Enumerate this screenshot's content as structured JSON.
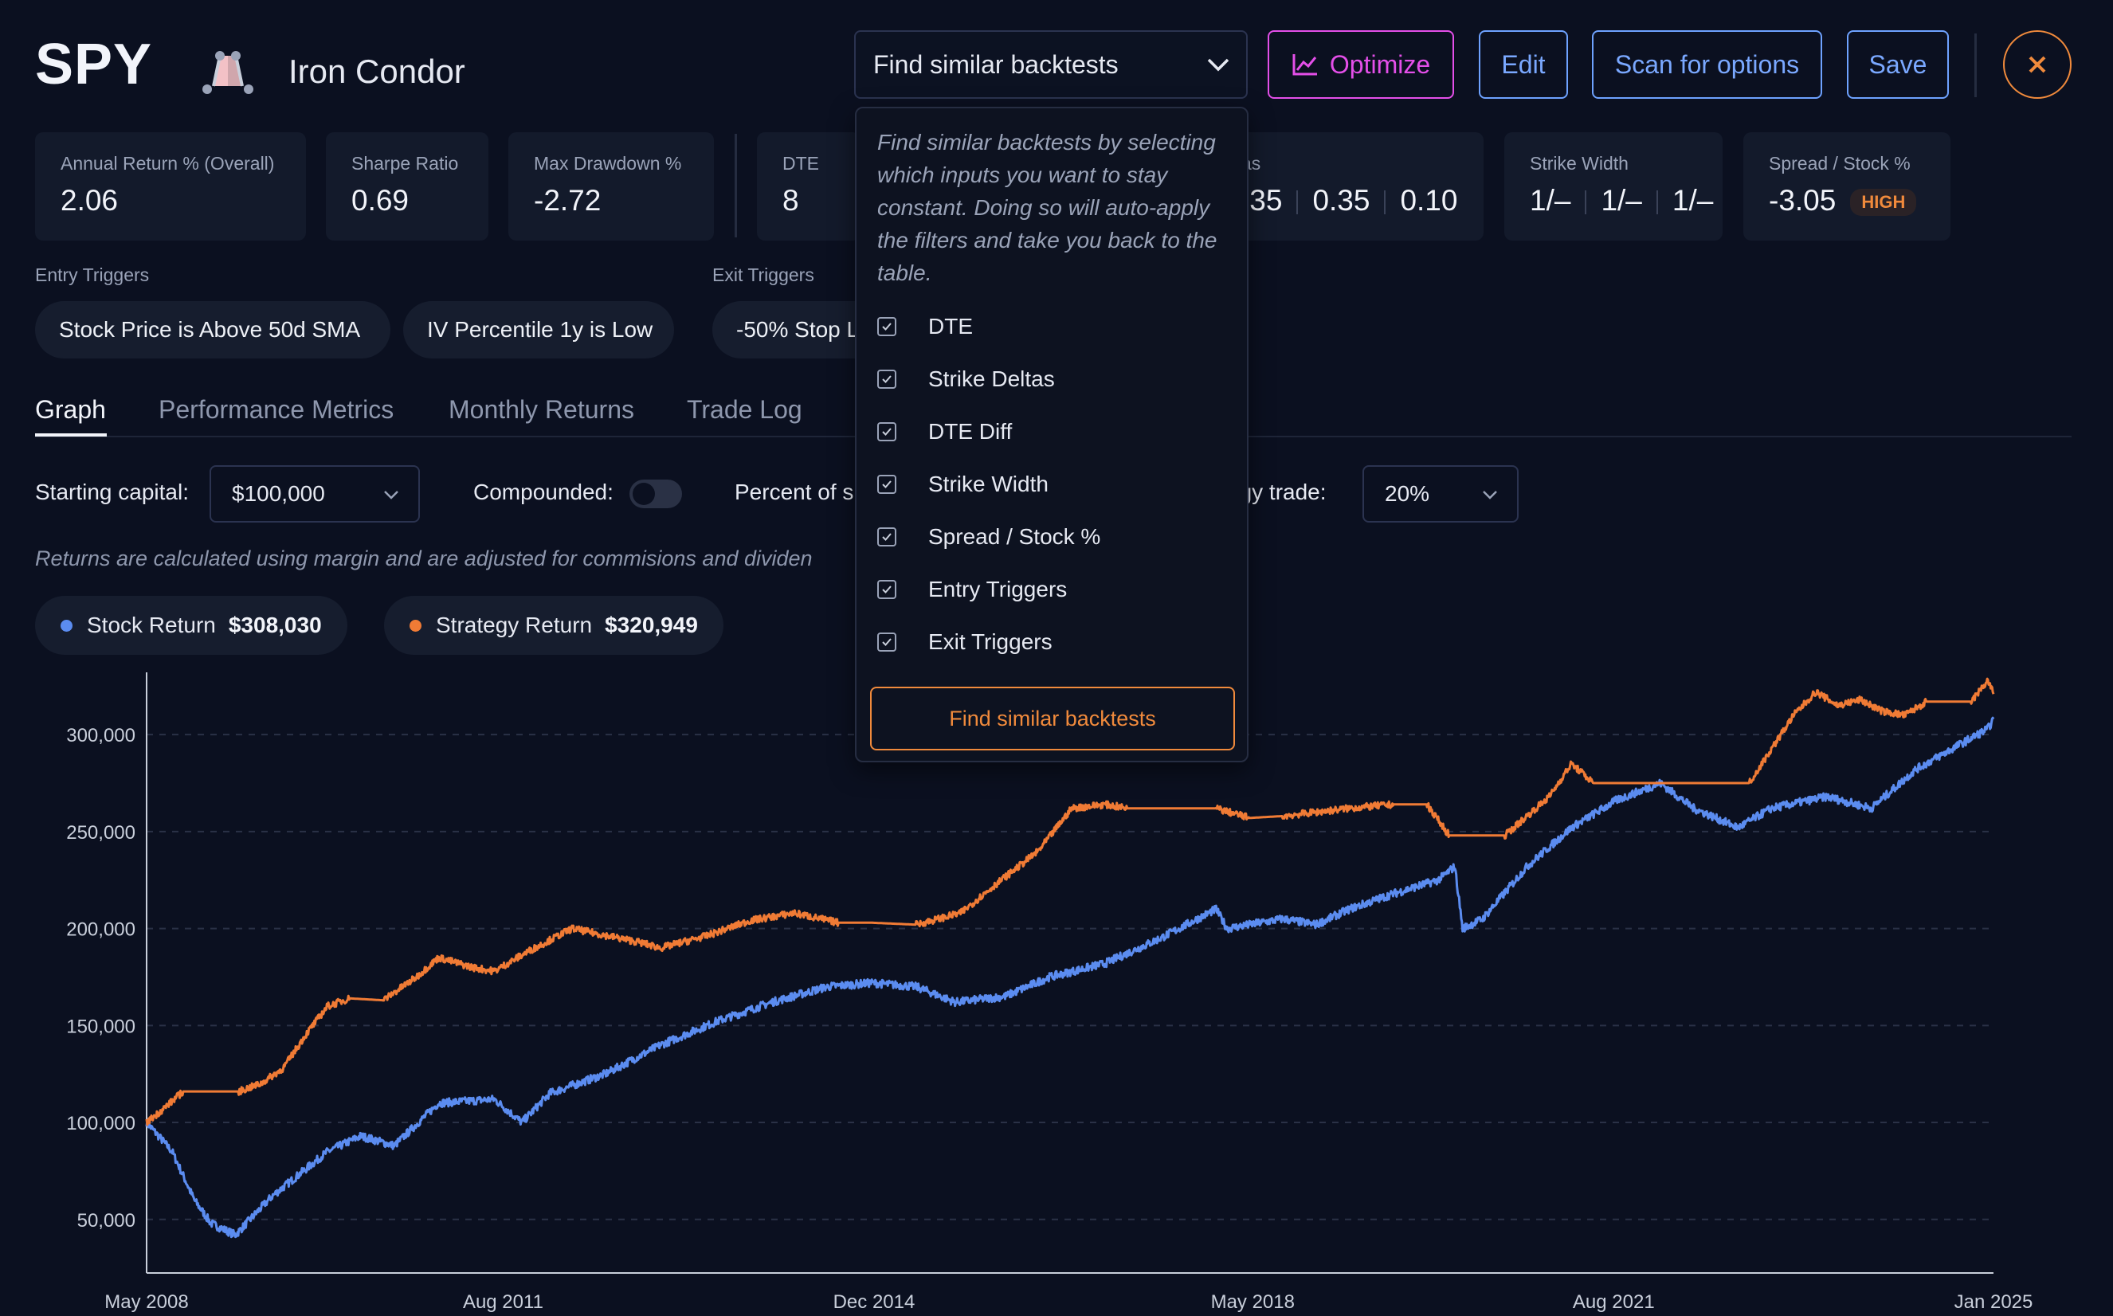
{
  "header": {
    "ticker": "SPY",
    "strategy_name": "Iron Condor",
    "strategy_icon": "iron-condor-icon",
    "similar_dropdown_label": "Find similar backtests",
    "optimize_label": "Optimize",
    "edit_label": "Edit",
    "scan_label": "Scan for options",
    "save_label": "Save",
    "close_icon": "close-icon"
  },
  "metrics": {
    "annual_return": {
      "label": "Annual Return % (Overall)",
      "value": "2.06"
    },
    "sharpe": {
      "label": "Sharpe Ratio",
      "value": "0.69"
    },
    "max_drawdown": {
      "label": "Max Drawdown %",
      "value": "-2.72"
    },
    "dte": {
      "label": "DTE",
      "value": "8"
    },
    "strike_deltas": {
      "label_partial": "as",
      "values": [
        ".35",
        "0.35",
        "0.10"
      ]
    },
    "strike_width": {
      "label": "Strike Width",
      "values": [
        "1/–",
        "1/–",
        "1/–"
      ]
    },
    "spread_stock": {
      "label": "Spread / Stock %",
      "value": "-3.05",
      "badge": "HIGH"
    }
  },
  "triggers": {
    "entry_label": "Entry Triggers",
    "entry": [
      "Stock Price is Above 50d SMA",
      "IV Percentile 1y is Low"
    ],
    "exit_label": "Exit Triggers",
    "exit": [
      "-50% Stop L"
    ]
  },
  "tabs": [
    "Graph",
    "Performance Metrics",
    "Monthly Returns",
    "Trade Log"
  ],
  "controls": {
    "starting_capital_label": "Starting capital:",
    "starting_capital_value": "$100,000",
    "compounded_label": "Compounded:",
    "compounded_on": false,
    "percent_label_left": "Percent of s",
    "percent_label_right": "egy trade:",
    "percent_value": "20%",
    "disclaimer": "Returns are calculated using margin and are adjusted for commisions and dividen"
  },
  "legend": {
    "stock": {
      "label": "Stock Return",
      "value": "$308,030",
      "color": "#5b8cf0"
    },
    "strategy": {
      "label": "Strategy Return",
      "value": "$320,949",
      "color": "#f07b35"
    }
  },
  "popover": {
    "description": "Find similar backtests by selecting which inputs you want to stay constant. Doing so will auto-apply the filters and take you back to the table.",
    "options": [
      "DTE",
      "Strike Deltas",
      "DTE Diff",
      "Strike Width",
      "Spread / Stock %",
      "Entry Triggers",
      "Exit Triggers"
    ],
    "checked": [
      true,
      true,
      true,
      true,
      true,
      true,
      true
    ],
    "button_label": "Find similar backtests"
  },
  "chart_data": {
    "type": "line",
    "x_tick_labels": [
      "May 2008",
      "Aug 2011",
      "Dec 2014",
      "May 2018",
      "Aug 2021",
      "Jan 2025"
    ],
    "x_range": [
      "2008-05",
      "2025-01"
    ],
    "y_tick_labels": [
      "50,000",
      "100,000",
      "150,000",
      "200,000",
      "250,000",
      "300,000"
    ],
    "ylim": [
      38000,
      328000
    ],
    "grid": "horizontal dashed",
    "series": [
      {
        "name": "Stock Return",
        "color": "#5b8cf0",
        "x": [
          2008.37,
          2008.6,
          2008.8,
          2008.95,
          2009.17,
          2009.5,
          2010.0,
          2010.3,
          2010.6,
          2011.0,
          2011.5,
          2011.75,
          2012.0,
          2012.5,
          2013.0,
          2013.5,
          2014.0,
          2014.5,
          2014.9,
          2015.3,
          2015.65,
          2016.1,
          2016.5,
          2017.0,
          2017.5,
          2018.0,
          2018.1,
          2018.6,
          2018.9,
          2019.2,
          2019.6,
          2020.0,
          2020.15,
          2020.22,
          2020.4,
          2020.8,
          2021.2,
          2021.6,
          2022.0,
          2022.3,
          2022.7,
          2023.0,
          2023.5,
          2023.9,
          2024.3,
          2024.7,
          2024.95,
          2025.0
        ],
        "y": [
          100000,
          85000,
          60000,
          48000,
          42000,
          62000,
          85000,
          93000,
          88000,
          110000,
          112000,
          100000,
          115000,
          125000,
          140000,
          152000,
          162000,
          170000,
          172000,
          170000,
          162000,
          165000,
          175000,
          182000,
          195000,
          210000,
          200000,
          205000,
          202000,
          210000,
          218000,
          225000,
          232000,
          200000,
          205000,
          232000,
          252000,
          266000,
          275000,
          262000,
          252000,
          262000,
          268000,
          262000,
          282000,
          295000,
          303000,
          308030
        ]
      },
      {
        "name": "Strategy Return",
        "color": "#f07b35",
        "x": [
          2008.37,
          2008.5,
          2008.7,
          2009.2,
          2009.4,
          2009.6,
          2009.8,
          2010.0,
          2010.2,
          2010.5,
          2010.8,
          2011.0,
          2011.3,
          2011.5,
          2011.8,
          2012.2,
          2012.8,
          2013.0,
          2013.4,
          2013.8,
          2014.2,
          2014.6,
          2014.9,
          2015.3,
          2015.7,
          2016.0,
          2016.4,
          2016.7,
          2017.0,
          2017.2,
          2017.5,
          2018.0,
          2018.3,
          2018.6,
          2018.9,
          2019.2,
          2019.6,
          2019.9,
          2020.1,
          2020.2,
          2020.6,
          2020.8,
          2021.0,
          2021.2,
          2021.4,
          2021.6,
          2022.0,
          2022.4,
          2022.8,
          2023.2,
          2023.4,
          2023.6,
          2023.8,
          2024.0,
          2024.2,
          2024.4,
          2024.8,
          2024.95,
          2025.0
        ],
        "y": [
          100000,
          106000,
          116000,
          116000,
          120000,
          128000,
          145000,
          160000,
          164000,
          163000,
          175000,
          185000,
          180000,
          178000,
          188000,
          200000,
          193000,
          190000,
          196000,
          204000,
          208000,
          203000,
          203000,
          202000,
          208000,
          222000,
          240000,
          262000,
          264000,
          262000,
          262000,
          262000,
          257000,
          258000,
          260000,
          262000,
          264000,
          264000,
          248000,
          248000,
          248000,
          258000,
          268000,
          285000,
          275000,
          275000,
          275000,
          275000,
          275000,
          310000,
          322000,
          315000,
          318000,
          312000,
          310000,
          317000,
          317000,
          328000,
          320949
        ]
      }
    ]
  }
}
